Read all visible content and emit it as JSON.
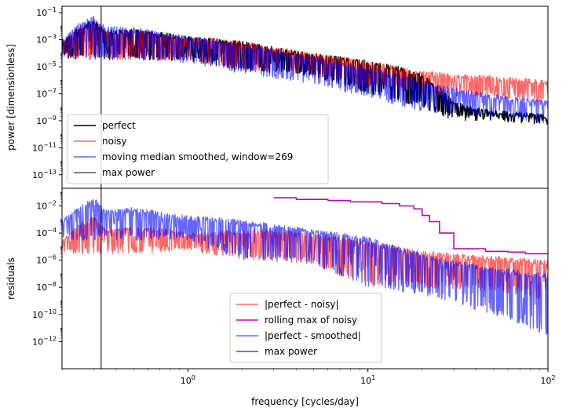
{
  "chart_data": [
    {
      "type": "line",
      "panel": "top",
      "xlabel": "",
      "ylabel": "power [dimensionless]",
      "x_scale": "log",
      "y_scale": "log",
      "xlim": [
        0.2,
        100
      ],
      "ylim": [
        1e-14,
        0.3
      ],
      "y_tick_values": [
        1e-13,
        1e-11,
        1e-09,
        1e-07,
        1e-05,
        0.001,
        0.1
      ],
      "y_tick_labels": [
        "10^-13",
        "10^-11",
        "10^-9",
        "10^-7",
        "10^-5",
        "10^-3",
        "10^-1"
      ],
      "vline": {
        "name": "max power",
        "x": 0.33,
        "color": "#000000"
      },
      "legend": {
        "position": "lower-left"
      },
      "series": [
        {
          "name": "perfect",
          "color": "#000000",
          "alpha": 1.0,
          "points": [
            [
              0.2,
              0.001
            ],
            [
              0.25,
              0.01
            ],
            [
              0.3,
              0.03
            ],
            [
              0.35,
              0.005
            ],
            [
              0.5,
              0.006
            ],
            [
              0.8,
              0.003
            ],
            [
              1,
              0.002
            ],
            [
              2,
              0.0008
            ],
            [
              3,
              0.0003
            ],
            [
              5,
              0.0001
            ],
            [
              10,
              3e-05
            ],
            [
              15,
              1e-05
            ],
            [
              20,
              3e-06
            ],
            [
              25,
              3e-07
            ],
            [
              30,
              3e-08
            ],
            [
              40,
              1e-08
            ],
            [
              60,
              5e-09
            ],
            [
              100,
              3e-09
            ]
          ],
          "min_points": [
            [
              0.2,
              4e-05
            ],
            [
              0.5,
              3e-05
            ],
            [
              1,
              3e-05
            ],
            [
              2,
              5e-06
            ],
            [
              5,
              2e-06
            ],
            [
              10,
              1e-07
            ],
            [
              20,
              1e-08
            ],
            [
              30,
              1e-09
            ],
            [
              50,
              1e-09
            ],
            [
              100,
              5e-10
            ]
          ]
        },
        {
          "name": "noisy",
          "color": "#ff0000",
          "alpha": 0.6,
          "points": [
            [
              0.2,
              0.001
            ],
            [
              0.25,
              0.01
            ],
            [
              0.3,
              0.03
            ],
            [
              0.35,
              0.005
            ],
            [
              0.5,
              0.006
            ],
            [
              0.8,
              0.003
            ],
            [
              1,
              0.002
            ],
            [
              2,
              0.0008
            ],
            [
              3,
              0.0003
            ],
            [
              5,
              0.0001
            ],
            [
              10,
              3e-05
            ],
            [
              15,
              1e-05
            ],
            [
              20,
              5e-06
            ],
            [
              30,
              3e-06
            ],
            [
              50,
              2e-06
            ],
            [
              100,
              1e-06
            ]
          ],
          "min_points": [
            [
              0.2,
              4e-05
            ],
            [
              0.5,
              3e-05
            ],
            [
              1,
              3e-05
            ],
            [
              2,
              5e-06
            ],
            [
              5,
              2e-06
            ],
            [
              10,
              3e-07
            ],
            [
              20,
              1e-07
            ],
            [
              50,
              5e-08
            ],
            [
              100,
              2e-08
            ]
          ]
        },
        {
          "name": "moving median smoothed, window=269",
          "color": "#0000ff",
          "alpha": 0.6,
          "points": [
            [
              0.2,
              0.001
            ],
            [
              0.25,
              0.02
            ],
            [
              0.3,
              0.06
            ],
            [
              0.35,
              0.01
            ],
            [
              0.5,
              0.008
            ],
            [
              0.8,
              0.003
            ],
            [
              1,
              0.002
            ],
            [
              2,
              0.0005
            ],
            [
              3,
              0.0002
            ],
            [
              5,
              5e-05
            ],
            [
              10,
              1e-05
            ],
            [
              15,
              3e-06
            ],
            [
              20,
              8e-07
            ],
            [
              30,
              3e-07
            ],
            [
              50,
              1e-07
            ],
            [
              100,
              3e-08
            ]
          ],
          "min_points": [
            [
              0.2,
              4e-05
            ],
            [
              0.5,
              3e-05
            ],
            [
              1,
              2e-05
            ],
            [
              2,
              3e-06
            ],
            [
              5,
              5e-07
            ],
            [
              10,
              5e-08
            ],
            [
              20,
              5e-09
            ],
            [
              50,
              2e-09
            ],
            [
              100,
              5e-10
            ]
          ]
        }
      ]
    },
    {
      "type": "line",
      "panel": "bottom",
      "xlabel": "frequency [cycles/day]",
      "ylabel": "residuals",
      "x_scale": "log",
      "y_scale": "log",
      "xlim": [
        0.2,
        100
      ],
      "ylim": [
        1e-14,
        0.2
      ],
      "x_tick_values": [
        1,
        10,
        100
      ],
      "x_tick_labels": [
        "10^0",
        "10^1",
        "10^2"
      ],
      "y_tick_values": [
        1e-12,
        1e-10,
        1e-08,
        1e-06,
        0.0001,
        0.01
      ],
      "y_tick_labels": [
        "10^-12",
        "10^-10",
        "10^-8",
        "10^-6",
        "10^-4",
        "10^-2"
      ],
      "vline": {
        "name": "max power",
        "x": 0.33,
        "color": "#000000"
      },
      "legend": {
        "position": "lower-center"
      },
      "series": [
        {
          "name": "|perfect - noisy|",
          "color": "#ff0000",
          "alpha": 0.6,
          "points": [
            [
              0.2,
              3e-05
            ],
            [
              0.25,
              0.0005
            ],
            [
              0.3,
              0.002
            ],
            [
              0.35,
              0.0002
            ],
            [
              0.5,
              0.0003
            ],
            [
              0.8,
              0.0002
            ],
            [
              1,
              0.0001
            ],
            [
              2,
              0.0002
            ],
            [
              3,
              0.0002
            ],
            [
              5,
              0.0001
            ],
            [
              10,
              3e-05
            ],
            [
              15,
              1e-05
            ],
            [
              20,
              5e-06
            ],
            [
              30,
              3e-06
            ],
            [
              50,
              2e-06
            ],
            [
              100,
              1e-06
            ]
          ],
          "min_points": [
            [
              0.2,
              3e-06
            ],
            [
              0.5,
              3e-06
            ],
            [
              1,
              5e-06
            ],
            [
              2,
              1e-06
            ],
            [
              5,
              5e-07
            ],
            [
              10,
              1e-08
            ],
            [
              20,
              1e-08
            ],
            [
              50,
              5e-09
            ],
            [
              100,
              1e-09
            ]
          ]
        },
        {
          "name": "rolling max of noisy",
          "color": "#bf00bf",
          "alpha": 1.0,
          "step": true,
          "points": [
            [
              3,
              0.04
            ],
            [
              4,
              0.04
            ],
            [
              4,
              0.03
            ],
            [
              6,
              0.03
            ],
            [
              6,
              0.025
            ],
            [
              8,
              0.025
            ],
            [
              8,
              0.02
            ],
            [
              12,
              0.02
            ],
            [
              12,
              0.015
            ],
            [
              15,
              0.015
            ],
            [
              15,
              0.01
            ],
            [
              18,
              0.01
            ],
            [
              18,
              0.006
            ],
            [
              20,
              0.006
            ],
            [
              20,
              0.002
            ],
            [
              22,
              0.002
            ],
            [
              22,
              0.0007
            ],
            [
              25,
              0.0007
            ],
            [
              25,
              0.0001
            ],
            [
              30,
              0.0001
            ],
            [
              30,
              7e-06
            ],
            [
              45,
              7e-06
            ],
            [
              45,
              4.5e-06
            ],
            [
              60,
              4.5e-06
            ],
            [
              60,
              4e-06
            ],
            [
              75,
              4e-06
            ],
            [
              75,
              3e-06
            ],
            [
              100,
              3e-06
            ]
          ]
        },
        {
          "name": "|perfect - smoothed|",
          "color": "#0000ff",
          "alpha": 0.6,
          "points": [
            [
              0.2,
              0.001
            ],
            [
              0.25,
              0.01
            ],
            [
              0.3,
              0.05
            ],
            [
              0.35,
              0.005
            ],
            [
              0.5,
              0.008
            ],
            [
              0.8,
              0.003
            ],
            [
              1,
              0.002
            ],
            [
              2,
              0.001
            ],
            [
              3,
              0.0005
            ],
            [
              5,
              0.0002
            ],
            [
              10,
              5e-05
            ],
            [
              15,
              1e-05
            ],
            [
              20,
              3e-06
            ],
            [
              30,
              1e-06
            ],
            [
              50,
              3e-07
            ],
            [
              100,
              1e-07
            ]
          ],
          "min_points": [
            [
              0.2,
              3e-05
            ],
            [
              0.5,
              3e-05
            ],
            [
              1,
              3e-05
            ],
            [
              2,
              1e-06
            ],
            [
              5,
              5e-07
            ],
            [
              10,
              1e-08
            ],
            [
              20,
              3e-09
            ],
            [
              50,
              1e-10
            ],
            [
              100,
              3e-12
            ]
          ]
        }
      ]
    }
  ]
}
